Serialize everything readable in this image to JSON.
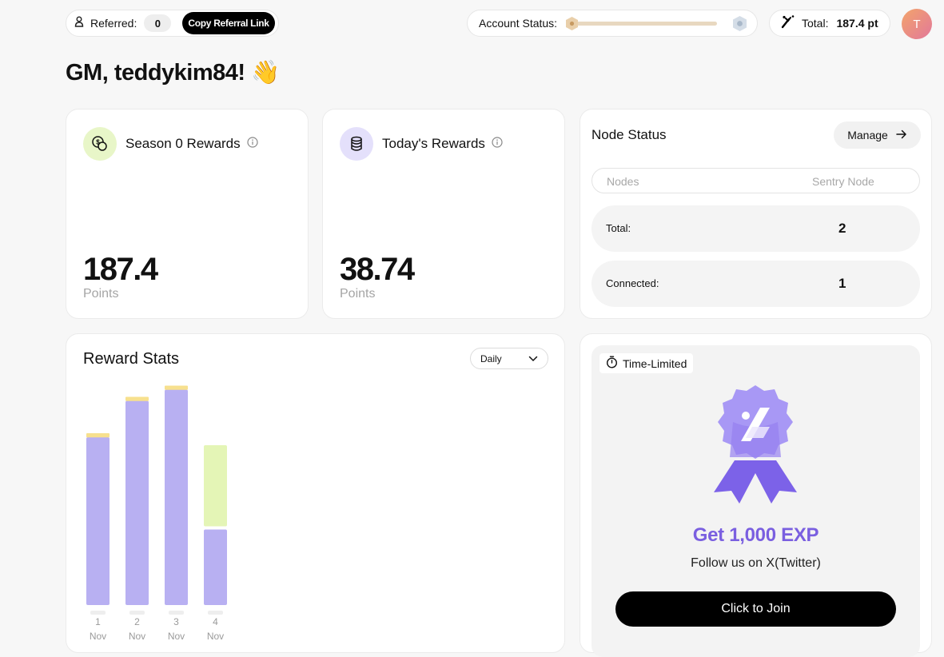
{
  "topbar": {
    "referred_label": "Referred:",
    "referred_count": "0",
    "copy_link_label": "Copy Referral Link",
    "account_status_label": "Account Status:",
    "account_progress": 0.01,
    "total_label": "Total:",
    "total_value": "187.4 pt",
    "avatar_initial": "T"
  },
  "greeting": {
    "text": "GM, teddykim84!",
    "emoji": "👋"
  },
  "season": {
    "title": "Season 0 Rewards",
    "value": "187.4",
    "unit": "Points"
  },
  "today": {
    "title": "Today's Rewards",
    "value": "38.74",
    "unit": "Points"
  },
  "node_status": {
    "title": "Node Status",
    "manage_label": "Manage",
    "col_nodes": "Nodes",
    "col_sentry": "Sentry Node",
    "total_label": "Total:",
    "total_value": "2",
    "connected_label": "Connected:",
    "connected_value": "1"
  },
  "reward_stats": {
    "title": "Reward Stats",
    "period": "Daily"
  },
  "promo": {
    "badge": "Time-Limited",
    "title": "Get 1,000 EXP",
    "subtitle": "Follow us on X(Twitter)",
    "button": "Click to Join"
  },
  "colors": {
    "bar_purple": "#b8b0f2",
    "bar_green": "#e4f5b6",
    "bar_cap": "#f7e08e",
    "promo_accent": "#7a5fe0"
  },
  "chart_data": {
    "type": "bar",
    "categories": [
      "1 Nov",
      "2 Nov",
      "3 Nov",
      "4 Nov"
    ],
    "tick_days": [
      "1",
      "2",
      "3",
      "4"
    ],
    "tick_month": "Nov",
    "series": [
      {
        "values": [
          60,
          73,
          77,
          27
        ]
      },
      {
        "values": [
          1,
          1,
          1,
          29
        ]
      }
    ]
  }
}
